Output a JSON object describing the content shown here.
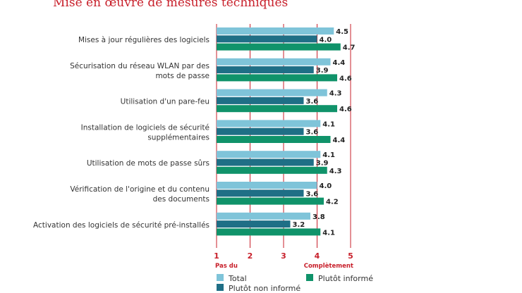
{
  "chart_data": {
    "type": "bar",
    "orientation": "horizontal",
    "title": "Mise en œuvre de mesures techniques",
    "categories": [
      [
        "Mises à jour régulières des logiciels"
      ],
      [
        "Sécurisation du réseau WLAN par des",
        "mots de passe"
      ],
      [
        "Utilisation d'un pare-feu"
      ],
      [
        "Installation de logiciels de sécurité",
        "supplémentaires"
      ],
      [
        "Utilisation de mots de passe sûrs"
      ],
      [
        "Vérification de l'origine et du contenu",
        "des documents"
      ],
      [
        "Activation des logiciels de sécurité pré-installés"
      ]
    ],
    "series": [
      {
        "name": "Total",
        "color": "#7fc4d9",
        "values": [
          4.5,
          4.4,
          4.3,
          4.1,
          4.1,
          4.0,
          3.8
        ]
      },
      {
        "name": "Plutôt non informé",
        "color": "#1f6f86",
        "values": [
          4.0,
          3.9,
          3.6,
          3.6,
          3.9,
          3.6,
          3.2
        ]
      },
      {
        "name": "Plutôt informé",
        "color": "#10936a",
        "values": [
          4.7,
          4.6,
          4.6,
          4.4,
          4.3,
          4.2,
          4.1
        ]
      }
    ],
    "xlim": [
      1,
      5
    ],
    "xticks": [
      "1",
      "2",
      "3",
      "4",
      "5"
    ],
    "xtick_sublabels": {
      "min": "Pas du",
      "max": "Complètement"
    },
    "grid_color": "#c8202b",
    "legend": "bottom"
  }
}
